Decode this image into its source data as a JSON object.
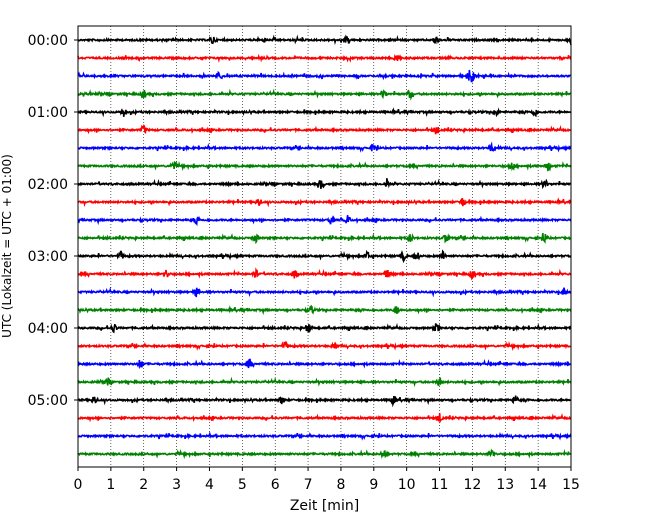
{
  "chart_data": {
    "type": "line",
    "title": "",
    "xlabel": "Zeit  [min]",
    "ylabel": "UTC (Lokalzeit = UTC + 01:00)",
    "xlim": [
      0,
      15
    ],
    "x_ticks": [
      "0",
      "1",
      "2",
      "3",
      "4",
      "5",
      "6",
      "7",
      "8",
      "9",
      "10",
      "11",
      "12",
      "13",
      "14",
      "15"
    ],
    "y_tick_labels": [
      "00:00",
      "01:00",
      "02:00",
      "03:00",
      "04:00",
      "05:00"
    ],
    "grid": "vertical dotted lines at each minute",
    "legend": "none",
    "trace_colors": [
      "#000000",
      "#ff0000",
      "#0000ff",
      "#008000"
    ],
    "traces": [
      {
        "start": "00:00",
        "color": "#000000",
        "events": [
          4.1,
          8.2,
          10.9,
          15.0
        ]
      },
      {
        "start": "00:15",
        "color": "#ff0000",
        "events": [
          9.7
        ]
      },
      {
        "start": "00:30",
        "color": "#0000ff",
        "events": [
          4.3,
          11.9,
          12.0
        ]
      },
      {
        "start": "00:45",
        "color": "#008000",
        "events": [
          2.0,
          9.3,
          10.1
        ]
      },
      {
        "start": "01:00",
        "color": "#000000",
        "events": [
          1.4,
          12.7,
          13.9
        ]
      },
      {
        "start": "01:15",
        "color": "#ff0000",
        "events": [
          2.0,
          10.9
        ]
      },
      {
        "start": "01:30",
        "color": "#0000ff",
        "events": [
          9.0,
          12.6
        ]
      },
      {
        "start": "01:45",
        "color": "#008000",
        "events": [
          2.9,
          13.2,
          14.3
        ]
      },
      {
        "start": "02:00",
        "color": "#000000",
        "events": [
          7.4,
          9.4,
          14.2
        ]
      },
      {
        "start": "02:15",
        "color": "#ff0000",
        "events": [
          5.5,
          11.7
        ]
      },
      {
        "start": "02:30",
        "color": "#0000ff",
        "events": [
          3.6,
          7.7,
          8.2
        ]
      },
      {
        "start": "02:45",
        "color": "#008000",
        "events": [
          5.4,
          10.1,
          11.2,
          14.2
        ]
      },
      {
        "start": "03:00",
        "color": "#000000",
        "events": [
          1.3,
          8.8,
          9.9,
          10.3,
          11.1
        ]
      },
      {
        "start": "03:15",
        "color": "#ff0000",
        "events": [
          2.7,
          5.4,
          6.6,
          9.4,
          12.0
        ]
      },
      {
        "start": "03:30",
        "color": "#0000ff",
        "events": [
          3.6,
          14.8
        ]
      },
      {
        "start": "03:45",
        "color": "#008000",
        "events": [
          7.1,
          9.7
        ]
      },
      {
        "start": "04:00",
        "color": "#000000",
        "events": [
          1.1,
          7.0,
          10.9
        ]
      },
      {
        "start": "04:15",
        "color": "#ff0000",
        "events": [
          6.3,
          7.8
        ]
      },
      {
        "start": "04:30",
        "color": "#0000ff",
        "events": [
          1.9,
          5.2
        ]
      },
      {
        "start": "04:45",
        "color": "#008000",
        "events": [
          0.9,
          11.0
        ]
      },
      {
        "start": "05:00",
        "color": "#000000",
        "events": [
          0.5,
          6.2,
          9.6,
          13.3
        ]
      },
      {
        "start": "05:15",
        "color": "#ff0000",
        "events": [
          11.0
        ]
      },
      {
        "start": "05:30",
        "color": "#0000ff",
        "events": []
      },
      {
        "start": "05:45",
        "color": "#008000",
        "events": [
          9.3,
          12.6
        ]
      }
    ]
  }
}
